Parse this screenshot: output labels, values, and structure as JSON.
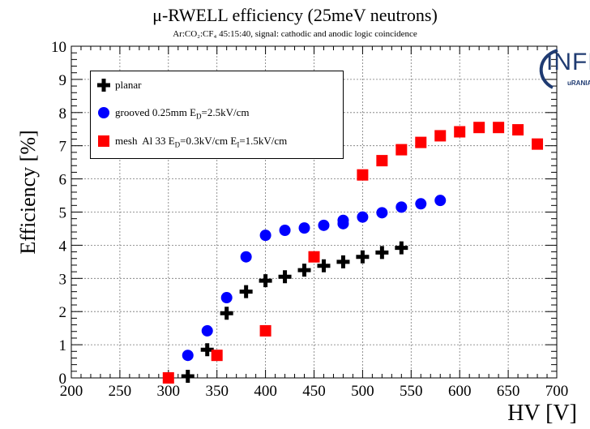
{
  "title": "μ-RWELL efficiency (25meV neutrons)",
  "subtitle": "Ar:CO₂:CF₄ 45:15:40, signal: cathodic and anodic logic coincidence",
  "logo": {
    "text": "INFN",
    "sub": "uRANIA-V"
  },
  "colors": {
    "planar": "#000000",
    "grooved": "#0000ff",
    "mesh": "#ff0000",
    "grid": "#777777"
  },
  "chart_data": {
    "type": "scatter",
    "title": "μ-RWELL efficiency (25meV neutrons)",
    "subtitle": "Ar:CO₂:CF₄ 45:15:40, signal: cathodic and anodic logic coincidence",
    "xlabel": "HV [V]",
    "ylabel": "Efficiency [%]",
    "xlim": [
      200,
      700
    ],
    "ylim": [
      0,
      10
    ],
    "xticks": [
      200,
      250,
      300,
      350,
      400,
      450,
      500,
      550,
      600,
      650,
      700
    ],
    "yticks": [
      0,
      1,
      2,
      3,
      4,
      5,
      6,
      7,
      8,
      9,
      10
    ],
    "grid": true,
    "legend_position": "top-left",
    "series": [
      {
        "key": "planar",
        "name": "planar",
        "marker": "cross",
        "x": [
          320,
          340,
          360,
          380,
          400,
          420,
          440,
          460,
          480,
          500,
          520,
          540
        ],
        "y": [
          0.05,
          0.85,
          1.95,
          2.6,
          2.93,
          3.05,
          3.25,
          3.38,
          3.5,
          3.65,
          3.78,
          3.92
        ]
      },
      {
        "key": "grooved",
        "name": "grooved 0.25mm E_D=2.5kV/cm",
        "marker": "circle",
        "x": [
          320,
          340,
          360,
          380,
          400,
          420,
          440,
          460,
          480,
          480,
          500,
          520,
          540,
          560,
          580
        ],
        "y": [
          0.68,
          1.42,
          2.42,
          3.65,
          4.3,
          4.45,
          4.52,
          4.6,
          4.65,
          4.75,
          4.85,
          4.98,
          5.15,
          5.25,
          5.35
        ]
      },
      {
        "key": "mesh",
        "name": "mesh Al 33 E_D=0.3kV/cm E_I=1.5kV/cm",
        "marker": "square",
        "x": [
          300,
          350,
          400,
          450,
          500,
          520,
          540,
          560,
          580,
          600,
          620,
          640,
          660,
          680
        ],
        "y": [
          0.0,
          0.68,
          1.42,
          3.65,
          6.12,
          6.55,
          6.88,
          7.1,
          7.3,
          7.42,
          7.55,
          7.55,
          7.48,
          7.05
        ]
      }
    ],
    "legend": [
      {
        "key": "planar",
        "parts": [
          {
            "t": "planar"
          }
        ]
      },
      {
        "key": "grooved",
        "parts": [
          {
            "t": "grooved 0.25mm E"
          },
          {
            "t": "D",
            "sub": true
          },
          {
            "t": "=2.5kV/cm"
          }
        ]
      },
      {
        "key": "mesh",
        "parts": [
          {
            "t": "mesh  Al 33 E"
          },
          {
            "t": "D",
            "sub": true
          },
          {
            "t": "=0.3kV/cm E"
          },
          {
            "t": "I",
            "sub": true
          },
          {
            "t": "=1.5kV/cm"
          }
        ]
      }
    ]
  }
}
